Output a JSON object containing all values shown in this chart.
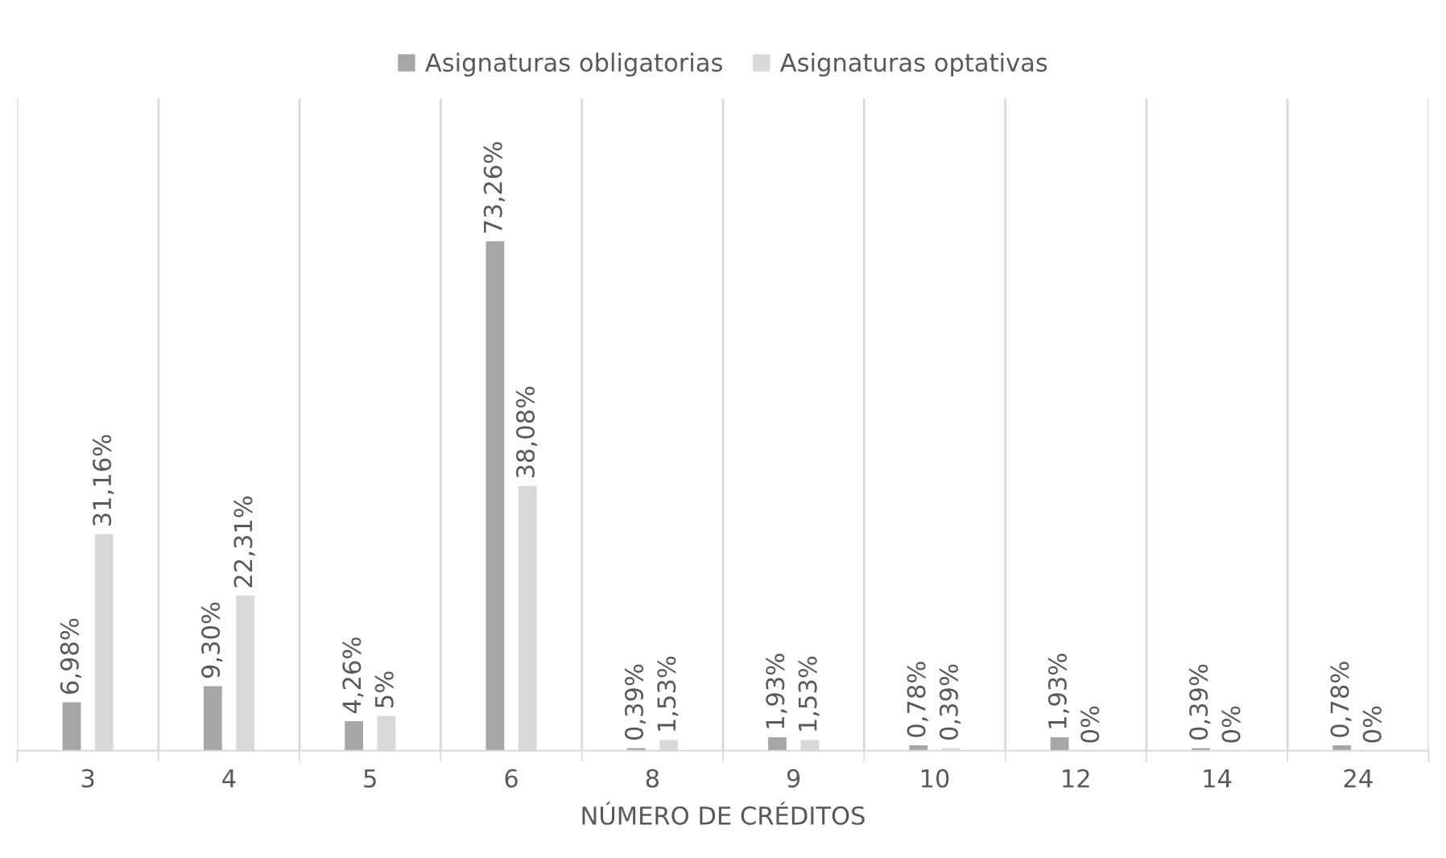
{
  "chart_data": {
    "type": "bar",
    "xlabel": "NÚMERO DE CRÉDITOS",
    "categories": [
      "3",
      "4",
      "5",
      "6",
      "8",
      "9",
      "10",
      "12",
      "14",
      "24"
    ],
    "series": [
      {
        "name": "Asignaturas obligatorias",
        "color": "#a6a6a6",
        "values": [
          6.98,
          9.3,
          4.26,
          73.26,
          0.39,
          1.93,
          0.78,
          1.93,
          0.39,
          0.78
        ],
        "value_labels": [
          "6,98%",
          "9,30%",
          "4,26%",
          "73,26%",
          "0,39%",
          "1,93%",
          "0,78%",
          "1,93%",
          "0,39%",
          "0,78%"
        ]
      },
      {
        "name": "Asignaturas optativas",
        "color": "#d9d9d9",
        "values": [
          31.16,
          22.31,
          5,
          38.08,
          1.53,
          1.53,
          0.39,
          0,
          0,
          0
        ],
        "value_labels": [
          "31,16%",
          "22,31%",
          "5%",
          "38,08%",
          "1,53%",
          "1,53%",
          "0,39%",
          "0%",
          "0%",
          "0%"
        ]
      }
    ],
    "grid": "x",
    "legend": "top",
    "tick_labels": "x"
  }
}
